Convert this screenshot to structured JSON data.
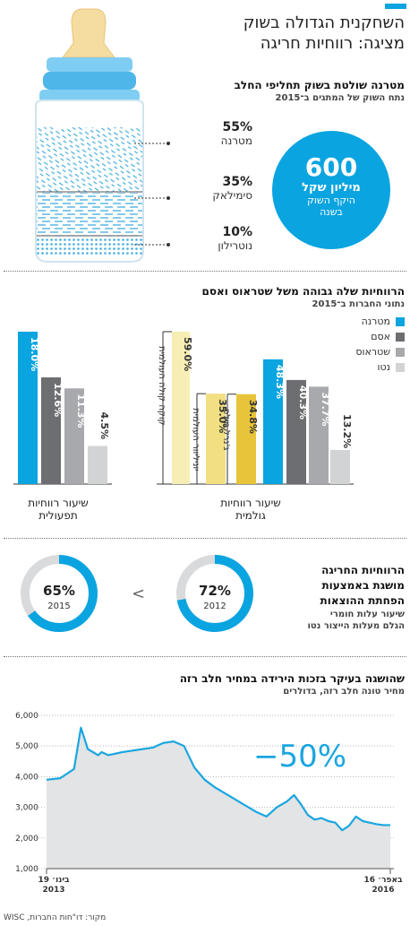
{
  "header": {
    "title_line1": "השחקנית הגדולה בשוק",
    "title_line2": "מציגה: רווחיות חריגה"
  },
  "market": {
    "title": "מטרנה שולטת בשוק תחליפי החלב",
    "subtitle": "נתח השוק של המתגים ב־2015",
    "shares": [
      {
        "pct": "55%",
        "name": "מטרנה"
      },
      {
        "pct": "35%",
        "name": "סימילאק"
      },
      {
        "pct": "10%",
        "name": "נוטרילון"
      }
    ],
    "circle": {
      "value": "600",
      "unit": "מיליון שקל",
      "line1": "היקף השוק",
      "line2": "בשנה"
    }
  },
  "colors": {
    "materna": "#0aa4e0",
    "osem": "#6d6e71",
    "strauss": "#a7a9ac",
    "nestle": "#d1d3d4",
    "kids": "#f6eeb4",
    "unilever": "#f1df82",
    "general": "#e8c43a"
  },
  "profit": {
    "title": "הרווחיות שלה גבוהה משל שטראוס ואסם",
    "subtitle": "נתוני החברות ב־2015",
    "legend": [
      "מטרנה",
      "אסם",
      "שטראוס",
      "נטו"
    ],
    "gross_label_1": "שיעור רווחיות",
    "gross_label_2": "גולמית",
    "op_label_1": "שיעור רווחיות",
    "op_label_2": "תפעולית"
  },
  "chart_data": [
    {
      "type": "bar",
      "title": "",
      "categories": [
        "קוקה קולה העולמית",
        "יוניליוור העולמית",
        "ג'נרל מילס",
        "מטרנה",
        "אסם",
        "שטראוס",
        "נטו"
      ],
      "values": [
        59.0,
        35.0,
        34.8,
        48.3,
        40.3,
        37.7,
        13.2
      ],
      "value_labels": [
        "59.0%",
        "35.0%",
        "34.8%",
        "48.3%",
        "40.3%",
        "37.7%",
        "13.2%"
      ],
      "xlabel": "שיעור רווחיות גולמית",
      "ylim": [
        0,
        70
      ]
    },
    {
      "type": "bar",
      "title": "",
      "categories": [
        "מטרנה",
        "אסם",
        "שטראוס",
        "נטו"
      ],
      "values": [
        18.0,
        12.6,
        11.3,
        4.5
      ],
      "value_labels": [
        "18.0%",
        "12.6%",
        "11.3%",
        "4.5%"
      ],
      "xlabel": "שיעור רווחיות תפעולית",
      "ylim": [
        0,
        22
      ]
    },
    {
      "type": "pie",
      "title": "",
      "series": [
        {
          "name": "2012",
          "value": 72,
          "label": "72%"
        },
        {
          "name": "2015",
          "value": 65,
          "label": "65%"
        }
      ]
    },
    {
      "type": "area",
      "title": "שהושגה בעיקר בזכות הירידה במחיר חלב רזה",
      "subtitle": "מחיר טונה חלב רזה, בדולרים",
      "yticks": [
        "6,000",
        "5,000",
        "4,000",
        "3,000",
        "2,000",
        "1,000"
      ],
      "ylim": [
        1000,
        6000
      ],
      "x_start_label_1": "19 בינו׳",
      "x_start_label_2": "2013",
      "x_end_label_1": "16 באפר׳",
      "x_end_label_2": "2016",
      "annotation": "−50%",
      "x": [
        0,
        4,
        8,
        10,
        12,
        15,
        16,
        18,
        20,
        22,
        25,
        28,
        31,
        34,
        37,
        40,
        43,
        46,
        49,
        52,
        55,
        58,
        61,
        64,
        67,
        70,
        72,
        74,
        76,
        78,
        80,
        82,
        84,
        86,
        88,
        90,
        92,
        94,
        96,
        98,
        100
      ],
      "values": [
        3900,
        3950,
        4250,
        5600,
        4900,
        4700,
        4800,
        4700,
        4750,
        4800,
        4850,
        4900,
        4950,
        5100,
        5150,
        5000,
        4300,
        3900,
        3650,
        3450,
        3250,
        3050,
        2850,
        2700,
        3000,
        3200,
        3400,
        3100,
        2750,
        2600,
        2650,
        2550,
        2500,
        2250,
        2400,
        2700,
        2550,
        2500,
        2450,
        2420,
        2420
      ]
    }
  ],
  "margin": {
    "title_line1": "הרווחיות החריגה",
    "title_line2": "מושגת באמצעות",
    "title_line3": "הפחתת ההוצאות",
    "sub_line1": "שיעור עלות חומרי",
    "sub_line2": "הגלם מעלות הייצור נטו",
    "compare": "<"
  },
  "source": "מקור: דו\"חות החברות, WISC"
}
